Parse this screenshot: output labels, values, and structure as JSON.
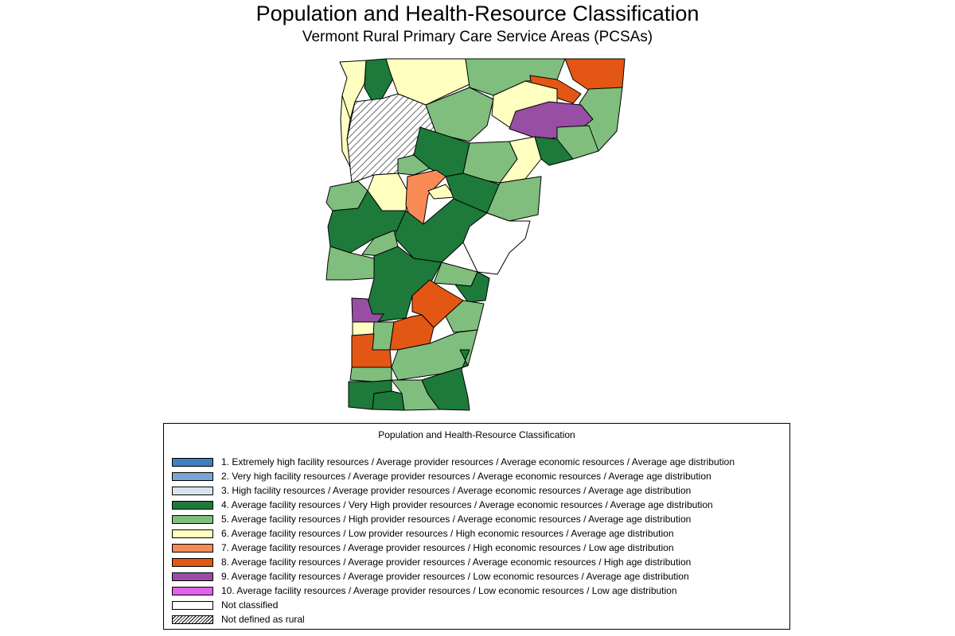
{
  "title": "Population and Health-Resource Classification",
  "subtitle": "Vermont Rural Primary Care Service Areas (PCSAs)",
  "map": {
    "region": "Vermont",
    "border_color": "#000000"
  },
  "legend": {
    "title": "Population and Health-Resource Classification",
    "items": [
      {
        "label": "1. Extremely high facility resources / Average provider resources / Average economic resources / Average age distribution",
        "color": "#3E7FC0"
      },
      {
        "label": "2. Very high facility resources / Average provider resources / Average economic resources / Average age distribution",
        "color": "#7BA6D3"
      },
      {
        "label": "3. High facility resources / Average provider resources / Average economic resources / Average age distribution",
        "color": "#D6E4EF"
      },
      {
        "label": "4. Average facility resources / Very High provider resources / Average economic resources / Average age distribution",
        "color": "#1D7A3A"
      },
      {
        "label": "5. Average facility resources / High provider resources / Average economic resources / Average age distribution",
        "color": "#80BE7E"
      },
      {
        "label": "6. Average facility resources / Low provider resources / High economic resources / Average age distribution",
        "color": "#FFFFBF"
      },
      {
        "label": "7. Average facility resources / Average provider resources / High economic resources / Low age distribution",
        "color": "#F88A55"
      },
      {
        "label": "8. Average facility resources / Average provider resources / Average economic resources / High age distribution",
        "color": "#E45614"
      },
      {
        "label": "9. Average facility resources / Average provider resources / Low economic resources / Average age distribution",
        "color": "#984EA3"
      },
      {
        "label": "10. Average facility resources / Average provider resources / Low economic resources / Low age distribution",
        "color": "#E161E8"
      },
      {
        "label": "Not classified",
        "color": "#FFFFFF"
      },
      {
        "label": "Not defined as rural",
        "color": "hatch"
      }
    ]
  }
}
